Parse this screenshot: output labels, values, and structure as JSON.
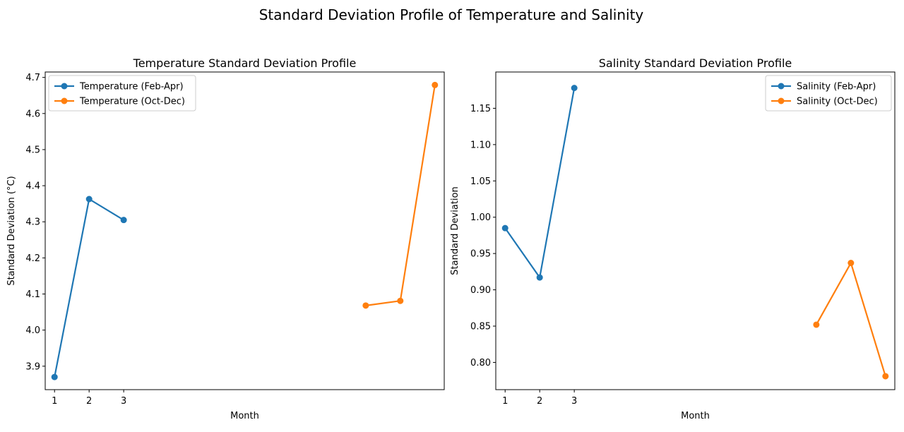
{
  "figure": {
    "title": "Standard Deviation Profile of Temperature and Salinity"
  },
  "chart_data": [
    {
      "type": "line",
      "title": "Temperature Standard Deviation Profile",
      "xlabel": "Month",
      "ylabel": "Standard Deviation (°C)",
      "xlim": [
        0.73,
        12.27
      ],
      "ylim": [
        3.835,
        4.715
      ],
      "xticks": [
        1,
        2,
        3
      ],
      "xticklabels": [
        "1",
        "2",
        "3"
      ],
      "yticks": [
        3.9,
        4.0,
        4.1,
        4.2,
        4.3,
        4.4,
        4.5,
        4.6,
        4.7
      ],
      "yticklabels": [
        "3.9",
        "4.0",
        "4.1",
        "4.2",
        "4.3",
        "4.4",
        "4.5",
        "4.6",
        "4.7"
      ],
      "grid": false,
      "legend_position": "upper left",
      "series": [
        {
          "name": "Temperature (Feb-Apr)",
          "color": "#1f77b4",
          "x": [
            1,
            2,
            3
          ],
          "y": [
            3.87,
            4.363,
            4.305
          ]
        },
        {
          "name": "Temperature (Oct-Dec)",
          "color": "#ff7f0e",
          "x": [
            10,
            11,
            12
          ],
          "y": [
            4.068,
            4.081,
            4.679
          ]
        }
      ]
    },
    {
      "type": "line",
      "title": "Salinity Standard Deviation Profile",
      "xlabel": "Month",
      "ylabel": "Standard Deviation",
      "xlim": [
        0.73,
        12.27
      ],
      "ylim": [
        0.7625,
        1.2
      ],
      "xticks": [
        1,
        2,
        3
      ],
      "xticklabels": [
        "1",
        "2",
        "3"
      ],
      "yticks": [
        0.8,
        0.85,
        0.9,
        0.95,
        1.0,
        1.05,
        1.1,
        1.15
      ],
      "yticklabels": [
        "0.80",
        "0.85",
        "0.90",
        "0.95",
        "1.00",
        "1.05",
        "1.10",
        "1.15"
      ],
      "grid": false,
      "legend_position": "upper right",
      "series": [
        {
          "name": "Salinity (Feb-Apr)",
          "color": "#1f77b4",
          "x": [
            1,
            2,
            3
          ],
          "y": [
            0.985,
            0.917,
            1.178
          ]
        },
        {
          "name": "Salinity (Oct-Dec)",
          "color": "#ff7f0e",
          "x": [
            10,
            11,
            12
          ],
          "y": [
            0.852,
            0.937,
            0.781
          ]
        }
      ]
    }
  ]
}
